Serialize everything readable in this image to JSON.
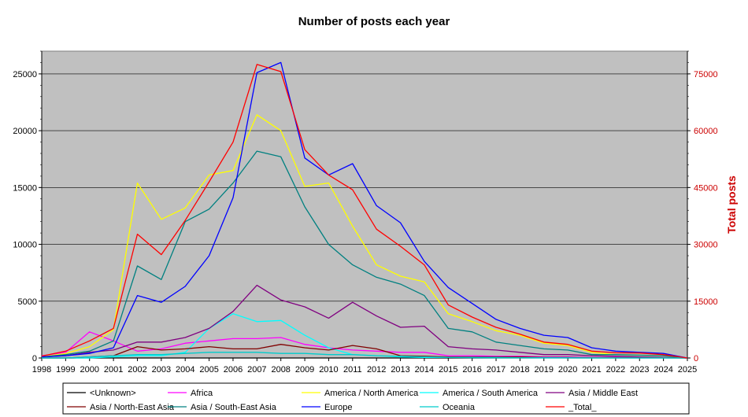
{
  "chart_data": {
    "type": "line",
    "title": "Number of posts each year",
    "xlabel": "",
    "ylabel": "",
    "y2label": "Total posts",
    "x": [
      1998,
      1999,
      2000,
      2001,
      2002,
      2003,
      2004,
      2005,
      2006,
      2007,
      2008,
      2009,
      2010,
      2011,
      2012,
      2013,
      2014,
      2015,
      2016,
      2017,
      2018,
      2019,
      2020,
      2021,
      2022,
      2023,
      2024,
      2025
    ],
    "ylim": [
      0,
      27000
    ],
    "y2lim": [
      0,
      81000
    ],
    "yticks": [
      0,
      5000,
      10000,
      15000,
      20000,
      25000
    ],
    "y2ticks": [
      0,
      15000,
      30000,
      45000,
      60000,
      75000
    ],
    "grid": true,
    "legend_position": "bottom",
    "series": [
      {
        "name": "<Unknown>",
        "color": "#000000",
        "axis": "left",
        "values": [
          0,
          0,
          0,
          0,
          0,
          0,
          0,
          0,
          0,
          0,
          0,
          0,
          0,
          0,
          0,
          0,
          0,
          0,
          0,
          0,
          0,
          0,
          0,
          0,
          0,
          0,
          0,
          0
        ]
      },
      {
        "name": "Africa",
        "color": "#ff00ff",
        "axis": "left",
        "values": [
          200,
          500,
          2300,
          1500,
          600,
          800,
          1300,
          1500,
          1700,
          1700,
          1800,
          1200,
          900,
          700,
          600,
          500,
          500,
          200,
          200,
          150,
          150,
          100,
          100,
          50,
          50,
          30,
          20,
          0
        ]
      },
      {
        "name": "America / North America",
        "color": "#ffff00",
        "axis": "left",
        "values": [
          100,
          400,
          1000,
          2500,
          15400,
          12200,
          13200,
          16100,
          16500,
          21400,
          20000,
          15100,
          15400,
          11600,
          8200,
          7200,
          6700,
          3900,
          3200,
          2400,
          2000,
          1300,
          1100,
          500,
          300,
          250,
          200,
          0
        ]
      },
      {
        "name": "America / South America",
        "color": "#00ffff",
        "axis": "left",
        "values": [
          0,
          0,
          0,
          100,
          200,
          200,
          500,
          2600,
          3900,
          3200,
          3300,
          2000,
          900,
          300,
          200,
          100,
          50,
          50,
          30,
          20,
          20,
          10,
          10,
          0,
          0,
          0,
          0,
          0
        ]
      },
      {
        "name": "Asia / Middle East",
        "color": "#800080",
        "axis": "left",
        "values": [
          100,
          200,
          500,
          700,
          1400,
          1400,
          1800,
          2600,
          4100,
          6400,
          5100,
          4500,
          3500,
          4900,
          3700,
          2700,
          2800,
          1000,
          800,
          700,
          500,
          300,
          300,
          200,
          150,
          100,
          50,
          0
        ]
      },
      {
        "name": "Asia / North-East Asia",
        "color": "#800000",
        "axis": "left",
        "values": [
          0,
          0,
          100,
          200,
          1000,
          700,
          800,
          1000,
          800,
          800,
          1200,
          900,
          700,
          1100,
          800,
          200,
          150,
          100,
          100,
          100,
          100,
          50,
          50,
          20,
          20,
          10,
          10,
          0
        ]
      },
      {
        "name": "Asia / South-East Asia",
        "color": "#008080",
        "axis": "left",
        "values": [
          100,
          300,
          600,
          1500,
          8100,
          6900,
          12000,
          13100,
          15400,
          18200,
          17700,
          13300,
          10000,
          8200,
          7100,
          6500,
          5500,
          2600,
          2300,
          1400,
          1100,
          800,
          700,
          300,
          300,
          250,
          200,
          0
        ]
      },
      {
        "name": "Europe",
        "color": "#0000ff",
        "axis": "left",
        "values": [
          100,
          200,
          400,
          900,
          5500,
          4900,
          6300,
          9000,
          14100,
          25100,
          26000,
          17600,
          16100,
          17100,
          13400,
          11900,
          8500,
          6200,
          4800,
          3400,
          2600,
          2000,
          1800,
          900,
          600,
          500,
          400,
          0
        ]
      },
      {
        "name": "Oceania",
        "color": "#00cccc",
        "axis": "left",
        "values": [
          0,
          0,
          100,
          200,
          300,
          300,
          400,
          500,
          500,
          500,
          400,
          400,
          300,
          300,
          200,
          150,
          100,
          50,
          50,
          50,
          30,
          30,
          20,
          10,
          10,
          10,
          10,
          0
        ]
      },
      {
        "name": "_Total_",
        "color": "#ff0000",
        "axis": "right",
        "values": [
          500,
          1800,
          4500,
          7800,
          32700,
          27300,
          36300,
          46500,
          57000,
          77500,
          75600,
          55000,
          48300,
          44400,
          34000,
          29500,
          24600,
          14000,
          10800,
          8100,
          6300,
          4200,
          3600,
          1800,
          1400,
          1300,
          900,
          0
        ]
      }
    ]
  }
}
